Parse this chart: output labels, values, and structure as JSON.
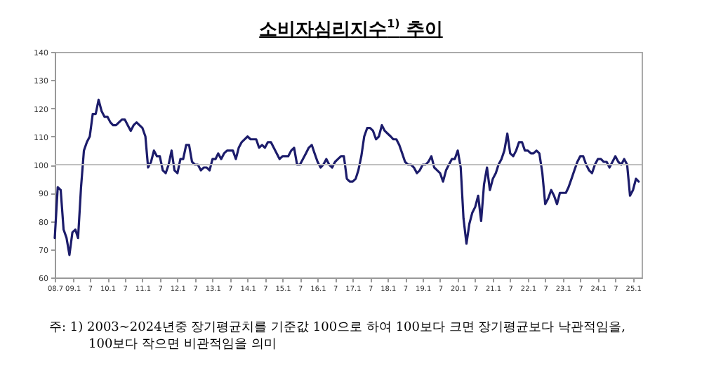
{
  "chart_data": {
    "type": "line",
    "title": "소비자심리지수$^{1)}$ 추이",
    "annotations": [
      "주: 1) 2003~2024년중 장기평균치를 기준값 100으로 하여 100보다 크면 장기평균보다 낙관적임을, 100보다 작으면 비관적임을 의미"
    ],
    "xlim": [
      "2008-07",
      "2025-04"
    ],
    "ylim": [
      60,
      140
    ],
    "yticks": [
      60,
      70,
      80,
      90,
      100,
      110,
      120,
      130,
      140
    ],
    "xticks": [
      {
        "value": "2008-07",
        "label": "08.7"
      },
      {
        "value": "2009-01",
        "label": "09.1"
      },
      {
        "value": "2009-07",
        "label": "7"
      },
      {
        "value": "2010-01",
        "label": "10.1"
      },
      {
        "value": "2010-07",
        "label": "7"
      },
      {
        "value": "2011-01",
        "label": "11.1"
      },
      {
        "value": "2011-07",
        "label": "7"
      },
      {
        "value": "2012-01",
        "label": "12.1"
      },
      {
        "value": "2012-07",
        "label": "7"
      },
      {
        "value": "2013-01",
        "label": "13.1"
      },
      {
        "value": "2013-07",
        "label": "7"
      },
      {
        "value": "2014-01",
        "label": "14.1"
      },
      {
        "value": "2014-07",
        "label": "7"
      },
      {
        "value": "2015-01",
        "label": "15.1"
      },
      {
        "value": "2015-07",
        "label": "7"
      },
      {
        "value": "2016-01",
        "label": "16.1"
      },
      {
        "value": "2016-07",
        "label": "7"
      },
      {
        "value": "2017-01",
        "label": "17.1"
      },
      {
        "value": "2017-07",
        "label": "7"
      },
      {
        "value": "2018-01",
        "label": "18.1"
      },
      {
        "value": "2018-07",
        "label": "7"
      },
      {
        "value": "2019-01",
        "label": "19.1"
      },
      {
        "value": "2019-07",
        "label": "7"
      },
      {
        "value": "2020-01",
        "label": "20.1"
      },
      {
        "value": "2020-07",
        "label": "7"
      },
      {
        "value": "2021-01",
        "label": "21.1"
      },
      {
        "value": "2021-07",
        "label": "7"
      },
      {
        "value": "2022-01",
        "label": "22.1"
      },
      {
        "value": "2022-07",
        "label": "7"
      },
      {
        "value": "2023-01",
        "label": "23.1"
      },
      {
        "value": "2023-07",
        "label": "7"
      },
      {
        "value": "2024-01",
        "label": "24.1"
      },
      {
        "value": "2024-07",
        "label": "7"
      },
      {
        "value": "2025-01",
        "label": "25.1"
      }
    ],
    "ref_lines": [
      {
        "axis": "y",
        "value": 100,
        "color": "#c0c0c0"
      }
    ],
    "x": [
      "2008-07",
      "2008-08",
      "2008-09",
      "2008-10",
      "2008-11",
      "2008-12",
      "2009-01",
      "2009-02",
      "2009-03",
      "2009-04",
      "2009-05",
      "2009-06",
      "2009-07",
      "2009-08",
      "2009-09",
      "2009-10",
      "2009-11",
      "2009-12",
      "2010-01",
      "2010-02",
      "2010-03",
      "2010-04",
      "2010-05",
      "2010-06",
      "2010-07",
      "2010-08",
      "2010-09",
      "2010-10",
      "2010-11",
      "2010-12",
      "2011-01",
      "2011-02",
      "2011-03",
      "2011-04",
      "2011-05",
      "2011-06",
      "2011-07",
      "2011-08",
      "2011-09",
      "2011-10",
      "2011-11",
      "2011-12",
      "2012-01",
      "2012-02",
      "2012-03",
      "2012-04",
      "2012-05",
      "2012-06",
      "2012-07",
      "2012-08",
      "2012-09",
      "2012-10",
      "2012-11",
      "2012-12",
      "2013-01",
      "2013-02",
      "2013-03",
      "2013-04",
      "2013-05",
      "2013-06",
      "2013-07",
      "2013-08",
      "2013-09",
      "2013-10",
      "2013-11",
      "2013-12",
      "2014-01",
      "2014-02",
      "2014-03",
      "2014-04",
      "2014-05",
      "2014-06",
      "2014-07",
      "2014-08",
      "2014-09",
      "2014-10",
      "2014-11",
      "2014-12",
      "2015-01",
      "2015-02",
      "2015-03",
      "2015-04",
      "2015-05",
      "2015-06",
      "2015-07",
      "2015-08",
      "2015-09",
      "2015-10",
      "2015-11",
      "2015-12",
      "2016-01",
      "2016-02",
      "2016-03",
      "2016-04",
      "2016-05",
      "2016-06",
      "2016-07",
      "2016-08",
      "2016-09",
      "2016-10",
      "2016-11",
      "2016-12",
      "2017-01",
      "2017-02",
      "2017-03",
      "2017-04",
      "2017-05",
      "2017-06",
      "2017-07",
      "2017-08",
      "2017-09",
      "2017-10",
      "2017-11",
      "2017-12",
      "2018-01",
      "2018-02",
      "2018-03",
      "2018-04",
      "2018-05",
      "2018-06",
      "2018-07",
      "2018-08",
      "2018-09",
      "2018-10",
      "2018-11",
      "2018-12",
      "2019-01",
      "2019-02",
      "2019-03",
      "2019-04",
      "2019-05",
      "2019-06",
      "2019-07",
      "2019-08",
      "2019-09",
      "2019-10",
      "2019-11",
      "2019-12",
      "2020-01",
      "2020-02",
      "2020-03",
      "2020-04",
      "2020-05",
      "2020-06",
      "2020-07",
      "2020-08",
      "2020-09",
      "2020-10",
      "2020-11",
      "2020-12",
      "2021-01",
      "2021-02",
      "2021-03",
      "2021-04",
      "2021-05",
      "2021-06",
      "2021-07",
      "2021-08",
      "2021-09",
      "2021-10",
      "2021-11",
      "2021-12",
      "2022-01",
      "2022-02",
      "2022-03",
      "2022-04",
      "2022-05",
      "2022-06",
      "2022-07",
      "2022-08",
      "2022-09",
      "2022-10",
      "2022-11",
      "2022-12",
      "2023-01",
      "2023-02",
      "2023-03",
      "2023-04",
      "2023-05",
      "2023-06",
      "2023-07",
      "2023-08",
      "2023-09",
      "2023-10",
      "2023-11",
      "2023-12",
      "2024-01",
      "2024-02",
      "2024-03",
      "2024-04",
      "2024-05",
      "2024-06",
      "2024-07",
      "2024-08",
      "2024-09",
      "2024-10",
      "2024-11",
      "2024-12",
      "2025-01",
      "2025-02",
      "2025-03"
    ],
    "series": [
      {
        "color": "#1c1c6b",
        "values": [
          74,
          92,
          91,
          77,
          74,
          68,
          76,
          77,
          74,
          92,
          105,
          108,
          110,
          118,
          118,
          123,
          119,
          117,
          117,
          115,
          114,
          114,
          115,
          116,
          116,
          114,
          112,
          114,
          115,
          114,
          113,
          110,
          99,
          101,
          105,
          103,
          103,
          98,
          97,
          100,
          105,
          98,
          97,
          102,
          102,
          107,
          107,
          101,
          100,
          100,
          98,
          99,
          99,
          98,
          102,
          102,
          104,
          102,
          104,
          105,
          105,
          105,
          102,
          106,
          108,
          109,
          110,
          109,
          109,
          109,
          106,
          107,
          106,
          108,
          108,
          106,
          104,
          102,
          103,
          103,
          103,
          105,
          106,
          100,
          100,
          102,
          104,
          106,
          107,
          104,
          101,
          99,
          100,
          102,
          100,
          99,
          101,
          102,
          103,
          103,
          95,
          94,
          94,
          95,
          98,
          103,
          110,
          113,
          113,
          112,
          109,
          110,
          114,
          112,
          111,
          110,
          109,
          109,
          107,
          104,
          101,
          100,
          100,
          99,
          97,
          98,
          100,
          100,
          101,
          103,
          99,
          98,
          97,
          94,
          98,
          100,
          102,
          102,
          105,
          99,
          81,
          72,
          79,
          83,
          85,
          89,
          80,
          93,
          99,
          91,
          95,
          97,
          100,
          102,
          105,
          111,
          104,
          103,
          105,
          108,
          108,
          105,
          105,
          104,
          104,
          105,
          104,
          97,
          86,
          88,
          91,
          89,
          86,
          90,
          90,
          90,
          92,
          95,
          98,
          101,
          103,
          103,
          100,
          98,
          97,
          100,
          102,
          102,
          101,
          101,
          99,
          101,
          103,
          101,
          100,
          102,
          100,
          89,
          91,
          95,
          94
        ]
      }
    ]
  }
}
